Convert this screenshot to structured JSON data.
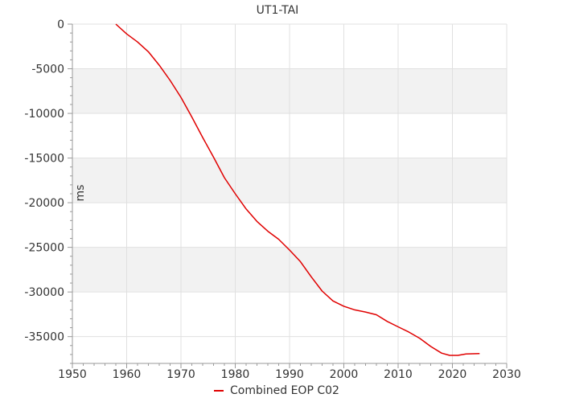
{
  "chart_data": {
    "type": "line",
    "title": "UT1-TAI",
    "xlabel": "",
    "ylabel": "ms",
    "xlim": [
      1950,
      2030
    ],
    "ylim": [
      -38000,
      0
    ],
    "x_ticks": [
      1950,
      1960,
      1970,
      1980,
      1990,
      2000,
      2010,
      2020,
      2030
    ],
    "y_ticks": [
      0,
      -5000,
      -10000,
      -15000,
      -20000,
      -25000,
      -30000,
      -35000
    ],
    "grid": true,
    "alternating_bands": true,
    "legend": "bottom-center",
    "colors": {
      "series": "#e00000",
      "band": "#f2f2f2",
      "grid": "#e0e0e0",
      "axis": "#999999"
    },
    "series": [
      {
        "name": "Combined EOP C02",
        "x": [
          1958.0,
          1960.0,
          1962.0,
          1964.0,
          1966.0,
          1968.0,
          1970.0,
          1972.0,
          1974.0,
          1976.0,
          1978.0,
          1980.0,
          1982.0,
          1984.0,
          1986.0,
          1988.0,
          1990.0,
          1992.0,
          1994.0,
          1996.0,
          1998.0,
          2000.0,
          2002.0,
          2004.0,
          2006.0,
          2008.0,
          2010.0,
          2012.0,
          2014.0,
          2016.0,
          2018.0,
          2019.5,
          2021.0,
          2022.5,
          2025.0
        ],
        "y": [
          0,
          -1100,
          -2000,
          -3100,
          -4600,
          -6300,
          -8200,
          -10400,
          -12700,
          -14900,
          -17200,
          -19000,
          -20700,
          -22100,
          -23200,
          -24100,
          -25300,
          -26600,
          -28300,
          -29900,
          -31000,
          -31600,
          -32000,
          -32250,
          -32550,
          -33300,
          -33900,
          -34500,
          -35200,
          -36100,
          -36850,
          -37100,
          -37100,
          -36950,
          -36900
        ]
      }
    ]
  }
}
